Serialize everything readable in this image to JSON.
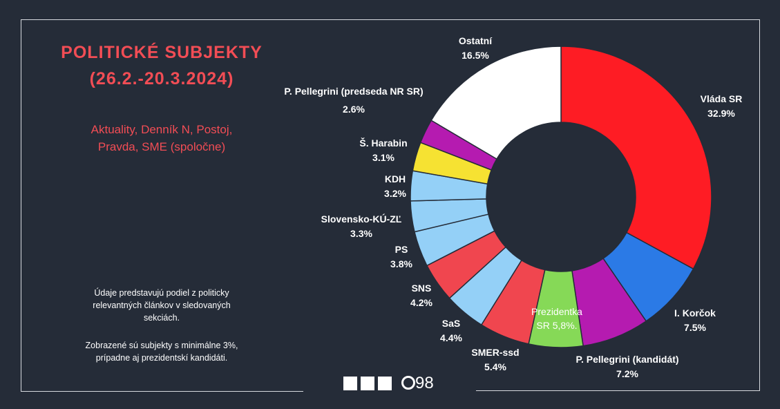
{
  "header": {
    "title_line1": "POLITICKÉ SUBJEKTY",
    "title_line2": "(26.2.-20.3.2024)",
    "sources_line1": "Aktuality, Denník N, Postoj,",
    "sources_line2": "Pravda, SME (spoločne)"
  },
  "notes": {
    "p1_line1": "Údaje predstavujú podiel z politicky",
    "p1_line2": "relevantných článkov v sledovaných",
    "p1_line3": "sekciách.",
    "p2_line1": "Zobrazené sú subjekty s minimálne 3%,",
    "p2_line2": "prípadne aj prezidentskí kandidáti."
  },
  "logo": {
    "number": "98"
  },
  "colors": {
    "background": "#252c38",
    "accent": "#f24d55",
    "text": "#ffffff"
  },
  "chart_data": {
    "type": "pie",
    "style": "donut",
    "unit": "%",
    "slices": [
      {
        "label": "Vláda SR",
        "value": 32.9,
        "display": "32.9%",
        "color": "#fe1c24"
      },
      {
        "label": "I. Korčok",
        "value": 7.5,
        "display": "7.5%",
        "color": "#2b7ae6"
      },
      {
        "label": "P. Pellegrini (kandidát)",
        "value": 7.2,
        "display": "7.2%",
        "color": "#b51bb0"
      },
      {
        "label": "Prezidentka SR",
        "value": 5.8,
        "display": "Prezidentka|SR 5,8%.",
        "color": "#86d957"
      },
      {
        "label": "SMER-ssd",
        "value": 5.4,
        "display": "5.4%",
        "color": "#f0464f"
      },
      {
        "label": "SaS",
        "value": 4.4,
        "display": "4.4%",
        "color": "#94d0f7"
      },
      {
        "label": "SNS",
        "value": 4.2,
        "display": "4.2%",
        "color": "#f0464f"
      },
      {
        "label": "PS",
        "value": 3.8,
        "display": "3.8%",
        "color": "#94d0f7"
      },
      {
        "label": "Slovensko-KÚ-ZĽ",
        "value": 3.3,
        "display": "3.3%",
        "color": "#94d0f7"
      },
      {
        "label": "KDH",
        "value": 3.2,
        "display": "3.2%",
        "color": "#94d0f7"
      },
      {
        "label": "Š. Harabin",
        "value": 3.1,
        "display": "3.1%",
        "color": "#f6e232"
      },
      {
        "label": "P. Pellegrini (predseda NR SR)",
        "value": 2.6,
        "display": "2.6%",
        "color": "#b51bb0"
      },
      {
        "label": "Ostatní",
        "value": 16.5,
        "display": "16.5%",
        "color": "#ffffff"
      }
    ]
  }
}
